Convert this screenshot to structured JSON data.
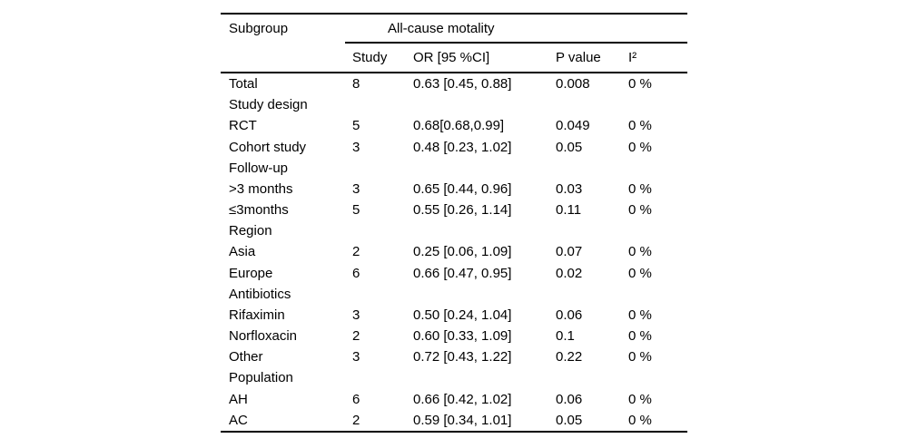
{
  "table": {
    "subgroup_label": "Subgroup",
    "group_header": "All-cause motality",
    "columns": [
      "Study",
      "OR [95 %CI]",
      "P value",
      "I²"
    ],
    "rows": [
      {
        "subgroup": "Total",
        "study": "8",
        "or_ci": "0.63 [0.45, 0.88]",
        "p": "0.008",
        "i2": "0 %"
      },
      {
        "subgroup": "Study design"
      },
      {
        "subgroup": "RCT",
        "study": "5",
        "or_ci": "0.68[0.68,0.99]",
        "p": "0.049",
        "i2": "0 %"
      },
      {
        "subgroup": "Cohort study",
        "study": "3",
        "or_ci": "0.48 [0.23, 1.02]",
        "p": "0.05",
        "i2": "0 %"
      },
      {
        "subgroup": "Follow-up"
      },
      {
        "subgroup": ">3 months",
        "study": "3",
        "or_ci": "0.65 [0.44, 0.96]",
        "p": "0.03",
        "i2": "0 %"
      },
      {
        "subgroup": "≤3months",
        "study": "5",
        "or_ci": "0.55 [0.26, 1.14]",
        "p": "0.11",
        "i2": "0 %"
      },
      {
        "subgroup": "Region"
      },
      {
        "subgroup": "Asia",
        "study": "2",
        "or_ci": "0.25 [0.06, 1.09]",
        "p": "0.07",
        "i2": "0 %"
      },
      {
        "subgroup": "Europe",
        "study": "6",
        "or_ci": "0.66 [0.47, 0.95]",
        "p": "0.02",
        "i2": "0 %"
      },
      {
        "subgroup": "Antibiotics"
      },
      {
        "subgroup": "Rifaximin",
        "study": "3",
        "or_ci": "0.50 [0.24, 1.04]",
        "p": "0.06",
        "i2": "0 %"
      },
      {
        "subgroup": "Norfloxacin",
        "study": "2",
        "or_ci": "0.60 [0.33, 1.09]",
        "p": "0.1",
        "i2": "0 %"
      },
      {
        "subgroup": "Other",
        "study": "3",
        "or_ci": "0.72 [0.43, 1.22]",
        "p": "0.22",
        "i2": "0 %"
      },
      {
        "subgroup": "Population"
      },
      {
        "subgroup": "AH",
        "study": "6",
        "or_ci": "0.66 [0.42, 1.02]",
        "p": "0.06",
        "i2": "0 %"
      },
      {
        "subgroup": "AC",
        "study": "2",
        "or_ci": "0.59 [0.34, 1.01]",
        "p": "0.05",
        "i2": "0 %"
      }
    ]
  }
}
